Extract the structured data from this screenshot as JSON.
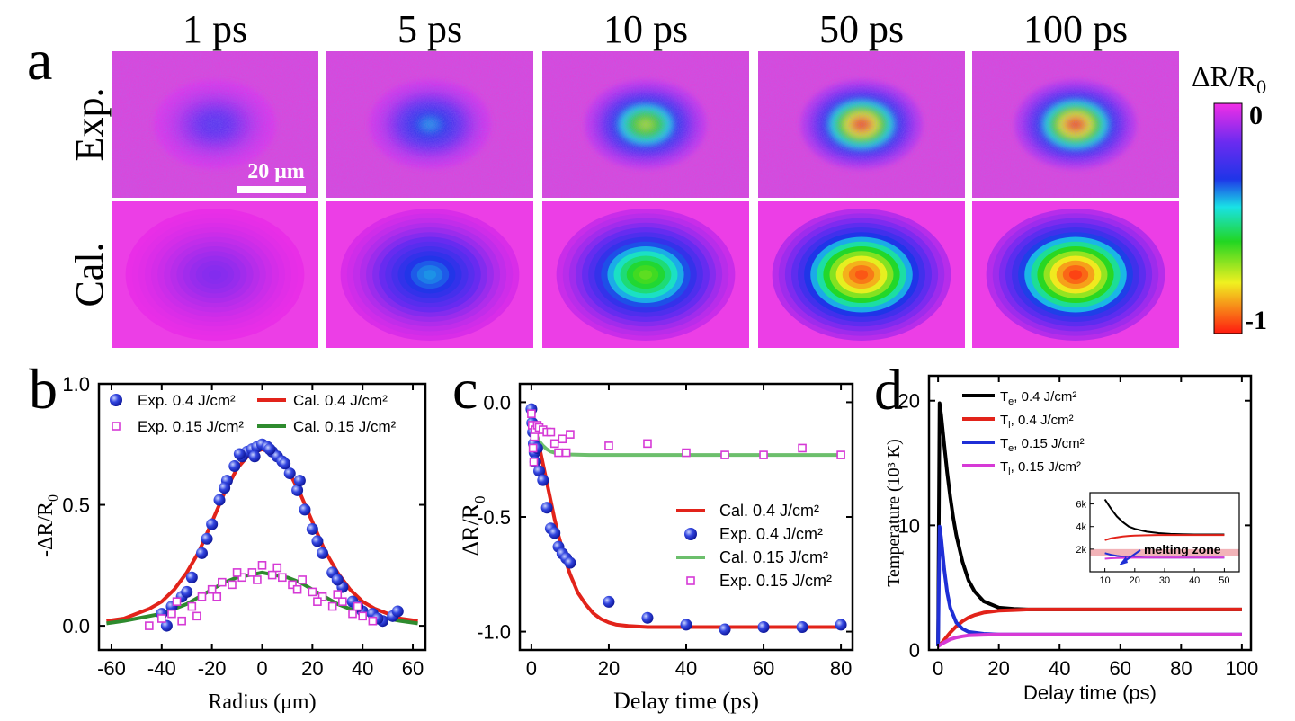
{
  "panel_a": {
    "label": "a",
    "time_labels": [
      "1 ps",
      "5 ps",
      "10 ps",
      "50 ps",
      "100 ps"
    ],
    "row_labels": [
      "Exp.",
      "Cal."
    ],
    "scale_bar": "20 μm",
    "colorbar": {
      "title_main": "ΔR/R",
      "title_sub": "0",
      "top_label": "0",
      "bottom_label": "-1"
    },
    "exp_levels": [
      0.22,
      0.4,
      0.72,
      0.95,
      0.95
    ],
    "cal_levels": [
      0.14,
      0.4,
      0.66,
      0.95,
      0.97
    ]
  },
  "colors": {
    "red": "#e2231a",
    "green": "#2e8b2e",
    "light_green": "#6cbf6c",
    "blue": "#1f2fd6",
    "magenta": "#d63ad6",
    "black": "#000000",
    "melting": "#f2b3b8"
  },
  "chart_data": [
    {
      "type": "line+scatter",
      "panel_label": "b",
      "title": "",
      "xlabel": "Radius (μm)",
      "ylabel_main": "-ΔR/R",
      "ylabel_sub": "0",
      "xlim": [
        -65,
        65
      ],
      "ylim": [
        -0.1,
        1.0
      ],
      "xticks": [
        -60,
        -40,
        -20,
        0,
        20,
        40,
        60
      ],
      "yticks": [
        0.0,
        0.5,
        1.0
      ],
      "ytick_labels": [
        "0.0",
        "0.5",
        "1.0"
      ],
      "legend": [
        {
          "label": "Exp. 0.4 J/cm²",
          "kind": "dot",
          "color": "blue"
        },
        {
          "label": "Cal. 0.4 J/cm²",
          "kind": "line",
          "color": "red"
        },
        {
          "label": "Exp. 0.15 J/cm²",
          "kind": "square",
          "color": "magenta"
        },
        {
          "label": "Cal. 0.15 J/cm²",
          "kind": "line",
          "color": "green"
        }
      ],
      "series": [
        {
          "name": "Cal. 0.4 J/cm²",
          "kind": "line",
          "color": "red",
          "x": [
            -62,
            -55,
            -50,
            -45,
            -40,
            -35,
            -30,
            -25,
            -20,
            -15,
            -10,
            -5,
            0,
            5,
            10,
            15,
            20,
            25,
            30,
            35,
            40,
            45,
            50,
            55,
            62
          ],
          "y": [
            0.02,
            0.03,
            0.05,
            0.07,
            0.1,
            0.15,
            0.22,
            0.31,
            0.43,
            0.55,
            0.65,
            0.71,
            0.73,
            0.71,
            0.65,
            0.55,
            0.43,
            0.31,
            0.22,
            0.15,
            0.1,
            0.07,
            0.05,
            0.03,
            0.02
          ]
        },
        {
          "name": "Cal. 0.15 J/cm²",
          "kind": "line",
          "color": "green",
          "x": [
            -62,
            -55,
            -50,
            -45,
            -40,
            -35,
            -30,
            -25,
            -20,
            -15,
            -10,
            -5,
            0,
            5,
            10,
            15,
            20,
            25,
            30,
            35,
            40,
            45,
            50,
            55,
            62
          ],
          "y": [
            0.01,
            0.02,
            0.03,
            0.04,
            0.05,
            0.07,
            0.09,
            0.12,
            0.15,
            0.18,
            0.2,
            0.21,
            0.22,
            0.21,
            0.2,
            0.18,
            0.15,
            0.12,
            0.09,
            0.07,
            0.05,
            0.04,
            0.03,
            0.02,
            0.01
          ]
        },
        {
          "name": "Exp. 0.4 J/cm²",
          "kind": "dot",
          "color": "blue",
          "x": [
            -40,
            -36,
            -32,
            -28,
            -24,
            -20,
            -17,
            -14,
            -11,
            -8,
            -6,
            -4,
            -2,
            0,
            2,
            4,
            6,
            8,
            11,
            14,
            17,
            20,
            24,
            28,
            32,
            36,
            40,
            44,
            48,
            52,
            -38,
            -30,
            -22,
            -15,
            -9,
            -3,
            3,
            9,
            15,
            22,
            30,
            38,
            46,
            54
          ],
          "y": [
            0.05,
            0.08,
            0.12,
            0.2,
            0.3,
            0.42,
            0.52,
            0.6,
            0.66,
            0.7,
            0.72,
            0.73,
            0.74,
            0.75,
            0.74,
            0.72,
            0.7,
            0.68,
            0.63,
            0.56,
            0.48,
            0.4,
            0.3,
            0.22,
            0.16,
            0.1,
            0.06,
            0.05,
            0.02,
            0.04,
            0.0,
            0.14,
            0.36,
            0.57,
            0.71,
            0.7,
            0.73,
            0.67,
            0.6,
            0.35,
            0.19,
            0.08,
            0.03,
            0.06
          ]
        },
        {
          "name": "Exp. 0.15 J/cm²",
          "kind": "square",
          "color": "magenta",
          "x": [
            -45,
            -40,
            -36,
            -32,
            -28,
            -24,
            -20,
            -16,
            -12,
            -8,
            -4,
            0,
            4,
            8,
            12,
            16,
            20,
            24,
            28,
            32,
            36,
            40,
            44,
            -34,
            -26,
            -18,
            -10,
            -2,
            6,
            14,
            22,
            30,
            38
          ],
          "y": [
            0.0,
            0.03,
            0.05,
            0.02,
            0.08,
            0.12,
            0.15,
            0.18,
            0.17,
            0.2,
            0.22,
            0.25,
            0.21,
            0.2,
            0.17,
            0.19,
            0.14,
            0.12,
            0.08,
            0.1,
            0.05,
            0.04,
            0.02,
            0.1,
            0.04,
            0.12,
            0.22,
            0.19,
            0.24,
            0.15,
            0.1,
            0.13,
            0.08
          ]
        }
      ]
    },
    {
      "type": "line+scatter",
      "panel_label": "c",
      "title": "",
      "xlabel": "Delay time (ps)",
      "ylabel_main": "ΔR/R",
      "ylabel_sub": "0",
      "xlim": [
        -3,
        83
      ],
      "ylim": [
        -1.08,
        0.08
      ],
      "xticks": [
        0,
        20,
        40,
        60,
        80
      ],
      "yticks": [
        0.0,
        -0.5,
        -1.0
      ],
      "ytick_labels": [
        "0.0",
        "-0.5",
        "-1.0"
      ],
      "legend": [
        {
          "label": "Cal.  0.4 J/cm²",
          "kind": "line",
          "color": "red"
        },
        {
          "label": "Exp. 0.4 J/cm²",
          "kind": "dot",
          "color": "blue"
        },
        {
          "label": "Cal.  0.15 J/cm²",
          "kind": "line",
          "color": "light_green"
        },
        {
          "label": "Exp. 0.15 J/cm²",
          "kind": "square",
          "color": "magenta"
        }
      ],
      "series": [
        {
          "name": "Cal.  0.4 J/cm²",
          "kind": "line",
          "color": "red",
          "x": [
            0,
            1,
            2,
            3,
            4,
            5,
            6,
            7,
            8,
            9,
            10,
            12,
            14,
            16,
            18,
            20,
            22,
            25,
            30,
            35,
            40,
            50,
            60,
            70,
            80
          ],
          "y": [
            -0.05,
            -0.12,
            -0.19,
            -0.27,
            -0.35,
            -0.43,
            -0.51,
            -0.58,
            -0.64,
            -0.7,
            -0.75,
            -0.83,
            -0.88,
            -0.92,
            -0.945,
            -0.96,
            -0.97,
            -0.975,
            -0.98,
            -0.98,
            -0.98,
            -0.98,
            -0.98,
            -0.98,
            -0.98
          ]
        },
        {
          "name": "Cal.  0.15 J/cm²",
          "kind": "line",
          "color": "light_green",
          "x": [
            0,
            0.5,
            1,
            2,
            3,
            4,
            5,
            6,
            8,
            10,
            15,
            20,
            30,
            40,
            50,
            60,
            70,
            80
          ],
          "y": [
            -0.02,
            -0.09,
            -0.13,
            -0.17,
            -0.19,
            -0.205,
            -0.215,
            -0.22,
            -0.225,
            -0.228,
            -0.23,
            -0.23,
            -0.23,
            -0.23,
            -0.23,
            -0.23,
            -0.23,
            -0.23
          ]
        },
        {
          "name": "Exp. 0.4 J/cm²",
          "kind": "dot",
          "color": "blue",
          "x": [
            0,
            0.2,
            0.4,
            0.6,
            0.8,
            1,
            1.5,
            2,
            3,
            4,
            5,
            6,
            7,
            8,
            9,
            10,
            20,
            30,
            40,
            50,
            60,
            70,
            80
          ],
          "y": [
            -0.03,
            -0.09,
            -0.13,
            -0.18,
            -0.22,
            -0.26,
            -0.2,
            -0.3,
            -0.34,
            -0.46,
            -0.55,
            -0.57,
            -0.63,
            -0.66,
            -0.68,
            -0.7,
            -0.87,
            -0.94,
            -0.97,
            -0.99,
            -0.98,
            -0.98,
            -0.97
          ]
        },
        {
          "name": "Exp. 0.15 J/cm²",
          "kind": "square",
          "color": "magenta",
          "x": [
            0,
            0.2,
            0.4,
            0.6,
            0.8,
            1,
            1.5,
            2,
            3,
            4,
            5,
            6,
            7,
            8,
            9,
            10,
            20,
            30,
            40,
            50,
            60,
            70,
            80
          ],
          "y": [
            -0.05,
            -0.1,
            -0.2,
            -0.26,
            -0.15,
            -0.12,
            -0.1,
            -0.11,
            -0.12,
            -0.13,
            -0.13,
            -0.18,
            -0.22,
            -0.16,
            -0.22,
            -0.14,
            -0.19,
            -0.18,
            -0.22,
            -0.23,
            -0.23,
            -0.2,
            -0.23
          ]
        }
      ]
    },
    {
      "type": "line",
      "panel_label": "d",
      "title": "",
      "xlabel": "Delay time (ps)",
      "ylabel": "Temperature (10³ K)",
      "xlim": [
        -3,
        103
      ],
      "ylim": [
        0,
        22
      ],
      "xticks": [
        0,
        20,
        40,
        60,
        80,
        100
      ],
      "yticks": [
        0,
        10,
        20
      ],
      "ytick_labels": [
        "0",
        "10",
        "20"
      ],
      "legend": [
        {
          "label": "T_e, 0.4 J/cm²",
          "sym": "T",
          "sub": "e",
          "rest": ", 0.4 J/cm²",
          "color": "black"
        },
        {
          "label": "T_l, 0.4 J/cm²",
          "sym": "T",
          "sub": "l",
          "rest": ", 0.4 J/cm²",
          "color": "red"
        },
        {
          "label": "T_e, 0.15 J/cm²",
          "sym": "T",
          "sub": "e",
          "rest": ", 0.15 J/cm²",
          "color": "blue"
        },
        {
          "label": "T_l, 0.15 J/cm²",
          "sym": "T",
          "sub": "l",
          "rest": ", 0.15 J/cm²",
          "color": "magenta"
        }
      ],
      "series": [
        {
          "name": "T_e, 0.4 J/cm²",
          "color": "black",
          "x": [
            0,
            0.5,
            1,
            2,
            3,
            4,
            5,
            6,
            8,
            10,
            12,
            15,
            20,
            25,
            30,
            40,
            50,
            60,
            80,
            100
          ],
          "y": [
            0.3,
            19.8,
            18.9,
            16.5,
            14.2,
            12.3,
            10.6,
            9.2,
            7.1,
            5.6,
            4.7,
            3.9,
            3.4,
            3.3,
            3.25,
            3.25,
            3.25,
            3.25,
            3.25,
            3.25
          ]
        },
        {
          "name": "T_l, 0.4 J/cm²",
          "color": "red",
          "x": [
            0,
            1,
            2,
            4,
            6,
            8,
            10,
            12,
            15,
            20,
            25,
            30,
            40,
            60,
            80,
            100
          ],
          "y": [
            0.3,
            0.5,
            0.8,
            1.4,
            1.9,
            2.3,
            2.6,
            2.8,
            3.0,
            3.15,
            3.2,
            3.25,
            3.25,
            3.25,
            3.25,
            3.25
          ]
        },
        {
          "name": "T_e, 0.15 J/cm²",
          "color": "blue",
          "x": [
            0,
            0.5,
            1,
            2,
            3,
            4,
            6,
            8,
            10,
            15,
            20,
            30,
            50,
            100
          ],
          "y": [
            0.3,
            9.9,
            9.0,
            6.5,
            4.6,
            3.4,
            2.2,
            1.7,
            1.45,
            1.3,
            1.25,
            1.25,
            1.25,
            1.25
          ]
        },
        {
          "name": "T_l, 0.15 J/cm²",
          "color": "magenta",
          "x": [
            0,
            1,
            2,
            4,
            6,
            8,
            10,
            15,
            20,
            30,
            50,
            100
          ],
          "y": [
            0.3,
            0.45,
            0.6,
            0.85,
            1.0,
            1.1,
            1.17,
            1.22,
            1.25,
            1.25,
            1.25,
            1.25
          ]
        }
      ],
      "inset": {
        "xlim": [
          5,
          55
        ],
        "ylim": [
          0,
          7000
        ],
        "xticks": [
          10,
          20,
          30,
          40,
          50
        ],
        "yticks": [
          2000,
          4000,
          6000
        ],
        "ytick_labels": [
          "2k",
          "4k",
          "6k"
        ],
        "melting_zone": [
          1400,
          2000
        ],
        "annotation": "melting zone",
        "series": [
          {
            "color": "black",
            "x": [
              10,
              12,
              14,
              16,
              18,
              20,
              24,
              28,
              32,
              36,
              40,
              45,
              50
            ],
            "y": [
              6400,
              5600,
              4900,
              4400,
              4000,
              3800,
              3550,
              3420,
              3350,
              3320,
              3300,
              3300,
              3300
            ]
          },
          {
            "color": "red",
            "x": [
              10,
              12,
              14,
              16,
              18,
              20,
              24,
              28,
              32,
              36,
              40,
              45,
              50
            ],
            "y": [
              2800,
              2950,
              3050,
              3120,
              3170,
              3200,
              3230,
              3250,
              3250,
              3250,
              3250,
              3250,
              3250
            ]
          },
          {
            "color": "blue",
            "x": [
              10,
              12,
              14,
              16,
              18,
              20,
              24,
              28,
              32,
              36,
              40,
              45,
              50
            ],
            "y": [
              1650,
              1500,
              1400,
              1340,
              1300,
              1280,
              1260,
              1250,
              1250,
              1250,
              1250,
              1250,
              1250
            ]
          },
          {
            "color": "magenta",
            "x": [
              10,
              12,
              14,
              16,
              18,
              20,
              24,
              28,
              32,
              36,
              40,
              45,
              50
            ],
            "y": [
              1150,
              1190,
              1210,
              1225,
              1235,
              1240,
              1245,
              1250,
              1250,
              1250,
              1250,
              1250,
              1250
            ]
          }
        ]
      }
    }
  ]
}
